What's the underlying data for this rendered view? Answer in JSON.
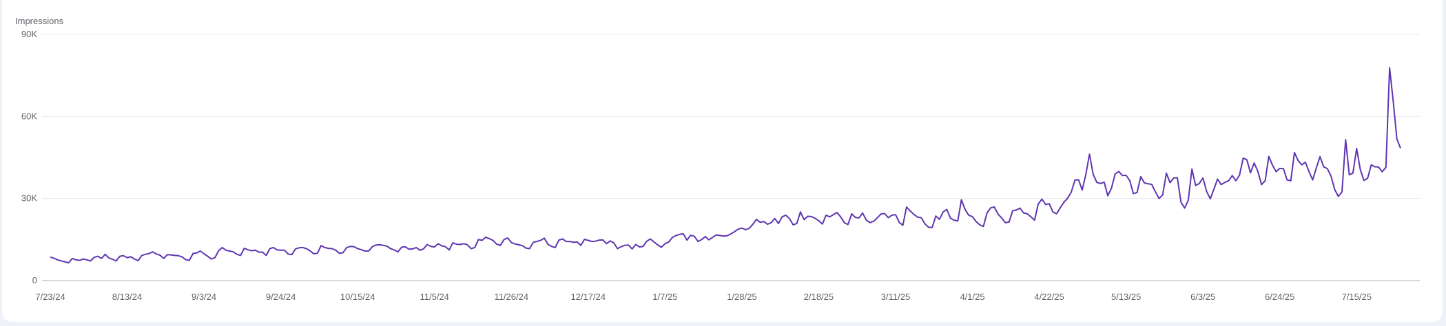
{
  "colors": {
    "series": "#5e35b1",
    "grid": "#e8eaed",
    "baseline": "#bdc1c6",
    "text": "#5f6368",
    "background": "#eef1f8"
  },
  "chart_data": {
    "type": "line",
    "title": "",
    "xlabel": "",
    "ylabel": "Impressions",
    "ylim": [
      0,
      90000
    ],
    "y_ticks": [
      {
        "value": 0,
        "label": "0"
      },
      {
        "value": 30000,
        "label": "30K"
      },
      {
        "value": 60000,
        "label": "60K"
      },
      {
        "value": 90000,
        "label": "90K"
      }
    ],
    "x_ticks": [
      "7/23/24",
      "8/13/24",
      "9/3/24",
      "9/24/24",
      "10/15/24",
      "11/5/24",
      "11/26/24",
      "12/17/24",
      "1/7/25",
      "1/28/25",
      "2/18/25",
      "3/11/25",
      "4/1/25",
      "4/22/25",
      "5/13/25",
      "6/3/25",
      "6/24/25",
      "7/15/25"
    ],
    "x_start": "7/23/24",
    "grid": true,
    "legend": "none",
    "series": [
      {
        "values": [
          8600,
          8200,
          7600,
          7200,
          6900,
          6500,
          8100,
          7600,
          7400,
          7900,
          7600,
          7200,
          8500,
          8900,
          8100,
          9600,
          8300,
          7800,
          7200,
          8900,
          9100,
          8400,
          8700,
          7900,
          7300,
          9200,
          9600,
          9900,
          10500,
          9700,
          9300,
          8100,
          9500,
          9400,
          9200,
          9100,
          8700,
          7700,
          7400,
          9900,
          10100,
          10800,
          9800,
          8900,
          7900,
          8400,
          10900,
          12100,
          11100,
          10800,
          10500,
          9600,
          9200,
          11800,
          11300,
          10900,
          11100,
          10400,
          10400,
          9200,
          11700,
          12100,
          11200,
          11100,
          11100,
          9700,
          9500,
          11600,
          12000,
          12100,
          11700,
          10900,
          9800,
          10000,
          12800,
          12100,
          11800,
          11700,
          11100,
          10000,
          10200,
          12100,
          12500,
          12400,
          11700,
          11300,
          10800,
          10800,
          12400,
          13000,
          13100,
          12900,
          12600,
          11700,
          11200,
          10500,
          12200,
          12400,
          11500,
          11600,
          12100,
          11100,
          11600,
          13200,
          12500,
          12300,
          13500,
          12700,
          12400,
          11200,
          13800,
          13300,
          13200,
          13500,
          13100,
          11700,
          12100,
          15000,
          14700,
          15900,
          15300,
          14700,
          13300,
          12900,
          15000,
          15600,
          13900,
          13400,
          13100,
          12800,
          11900,
          11700,
          14000,
          14300,
          14700,
          15500,
          13300,
          12500,
          12100,
          14800,
          15200,
          14300,
          14300,
          14000,
          14100,
          12900,
          15100,
          14700,
          14300,
          14400,
          14800,
          14900,
          13500,
          14500,
          13800,
          11700,
          12400,
          12900,
          13000,
          11600,
          13200,
          12300,
          12500,
          14400,
          15200,
          14100,
          13100,
          12200,
          13500,
          14100,
          15800,
          16500,
          16900,
          17100,
          14800,
          16600,
          16200,
          14300,
          15000,
          16100,
          14900,
          15800,
          16700,
          16500,
          16300,
          16400,
          17100,
          17900,
          18800,
          19200,
          18600,
          19100,
          20600,
          22400,
          21300,
          21600,
          20600,
          21200,
          22700,
          20900,
          23300,
          23900,
          22700,
          20400,
          20900,
          25100,
          22300,
          23500,
          23400,
          22800,
          21900,
          20700,
          23900,
          23300,
          24100,
          24900,
          23300,
          21200,
          20500,
          24400,
          23100,
          22900,
          24700,
          22100,
          21200,
          21700,
          22900,
          24300,
          24500,
          23000,
          23900,
          24100,
          21300,
          20200,
          26900,
          25500,
          24200,
          23200,
          23000,
          20800,
          19500,
          19400,
          23600,
          22400,
          25100,
          26000,
          22800,
          22100,
          21800,
          29600,
          26000,
          23900,
          23400,
          21600,
          20400,
          19800,
          24800,
          26600,
          26900,
          24300,
          22900,
          21200,
          21400,
          25600,
          25800,
          26500,
          24700,
          24400,
          23300,
          22100,
          28000,
          29800,
          27800,
          28100,
          25100,
          24400,
          26600,
          28600,
          30100,
          32300,
          36700,
          36900,
          33100,
          38800,
          46200,
          38900,
          35900,
          35500,
          36000,
          31000,
          33800,
          39000,
          39900,
          38400,
          38500,
          36600,
          31800,
          32200,
          38000,
          35700,
          35400,
          35200,
          32500,
          30000,
          31300,
          39300,
          35800,
          37500,
          37600,
          28700,
          26500,
          29400,
          40800,
          34800,
          35500,
          37500,
          32600,
          29900,
          33400,
          37100,
          35100,
          35900,
          36500,
          38400,
          36500,
          38600,
          44800,
          44200,
          39400,
          43000,
          40000,
          35100,
          36500,
          45400,
          42200,
          39800,
          41000,
          40900,
          36800,
          36500,
          46800,
          43900,
          42300,
          43300,
          39800,
          36800,
          41200,
          45300,
          41600,
          40900,
          38200,
          33300,
          30800,
          32400,
          51500,
          38700,
          39300,
          48300,
          40600,
          36600,
          37400,
          42300,
          41600,
          41500,
          39800,
          41400,
          77800,
          65500,
          51800,
          48400
        ]
      }
    ]
  }
}
